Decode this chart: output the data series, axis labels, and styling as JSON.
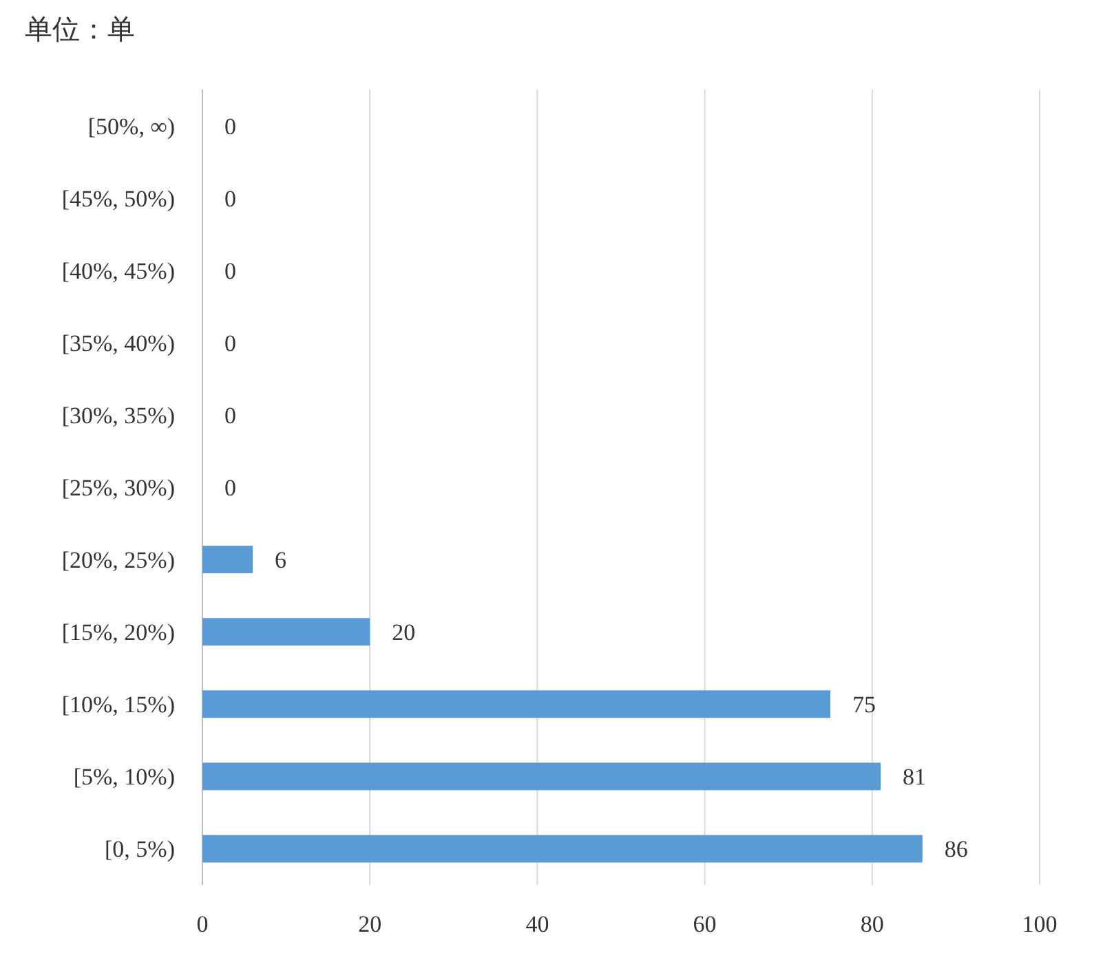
{
  "chart_data": {
    "type": "bar",
    "orientation": "horizontal",
    "annotations": [
      "单位：单"
    ],
    "categories": [
      "[50%, ∞)",
      "[45%, 50%)",
      "[40%, 45%)",
      "[35%, 40%)",
      "[30%, 35%)",
      "[25%, 30%)",
      "[20%, 25%)",
      "[15%, 20%)",
      "[10%, 15%)",
      "[5%, 10%)",
      "[0, 5%)"
    ],
    "values": [
      0,
      0,
      0,
      0,
      0,
      0,
      6,
      20,
      75,
      81,
      86
    ],
    "color": "#5b9bd5",
    "xlim": [
      0,
      100
    ],
    "xticks": [
      0,
      20,
      40,
      60,
      80,
      100
    ],
    "grid": "x",
    "data_labels": true
  }
}
